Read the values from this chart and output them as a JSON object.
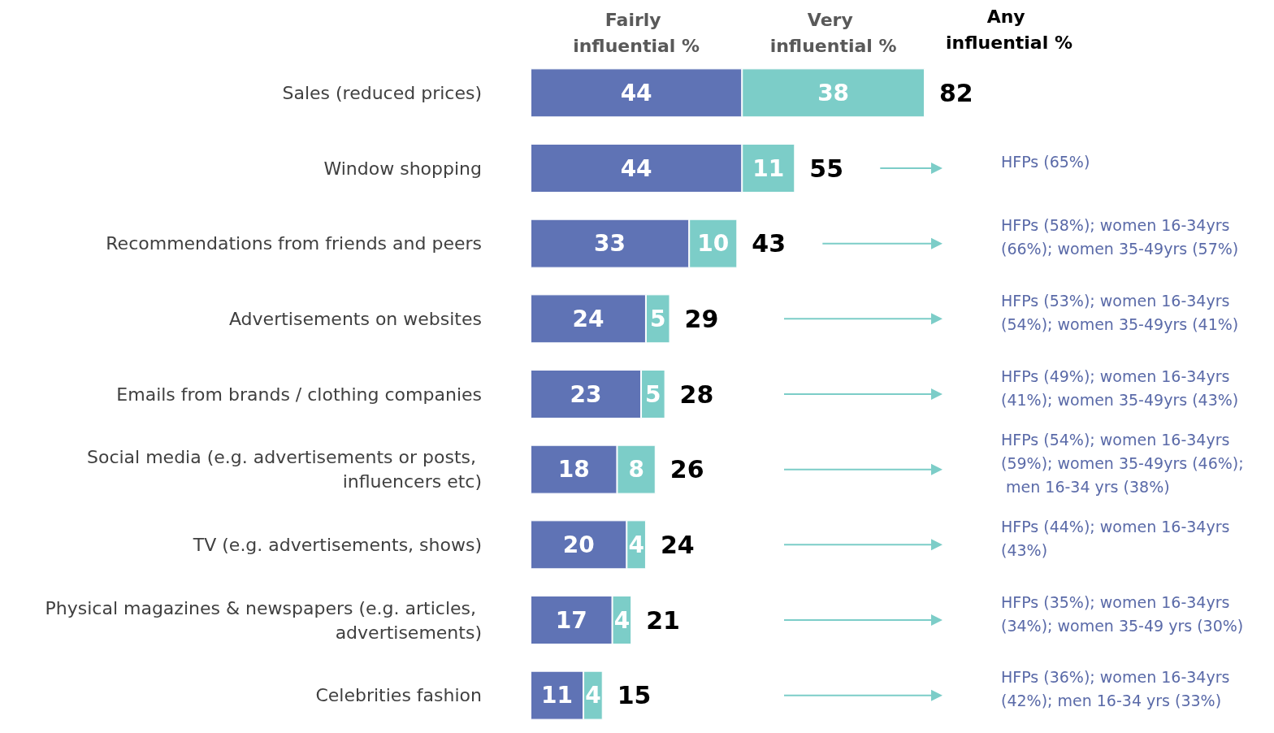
{
  "chart_data": {
    "type": "bar",
    "orientation": "horizontal",
    "stacked": true,
    "data_labels": true,
    "legend": "top",
    "categories": [
      "Sales (reduced prices)",
      "Window shopping",
      "Recommendations from friends and peers",
      "Advertisements on websites",
      "Emails from brands / clothing companies",
      "Social media (e.g. advertisements or posts, influencers etc)",
      "TV (e.g. advertisements, shows)",
      "Physical magazines & newspapers (e.g. articles, advertisements)",
      "Celebrities fashion"
    ],
    "series": [
      {
        "name": "Fairly influential %",
        "color": "#5f73b5",
        "values": [
          44,
          44,
          33,
          24,
          23,
          18,
          20,
          17,
          11
        ]
      },
      {
        "name": "Very influential %",
        "color": "#7ccdc8",
        "values": [
          38,
          11,
          10,
          5,
          5,
          8,
          4,
          4,
          4
        ]
      }
    ],
    "totals": [
      "82",
      "55",
      "43",
      "29",
      "28",
      "26",
      "24",
      "21",
      "15"
    ],
    "annotations": [
      "Any influential %",
      "HFPs (65%)",
      "HFPs (58%); women 16-34yrs (66%); women 35-49yrs (57%)",
      "HFPs (53%); women 16-34yrs (54%); women 35-49yrs (41%)",
      "HFPs (49%); women 16-34yrs (41%); women 35-49yrs (43%)",
      "HFPs (54%); women 16-34yrs (59%); women 35-49yrs (46%); men 16-34 yrs (38%)",
      "HFPs (44%); women 16-34yrs (43%)",
      "HFPs (35%); women 16-34yrs (34%); women 35-49 yrs (30%)",
      "HFPs (36%); women 16-34yrs (42%); men 16-34 yrs (33%)"
    ]
  }
}
